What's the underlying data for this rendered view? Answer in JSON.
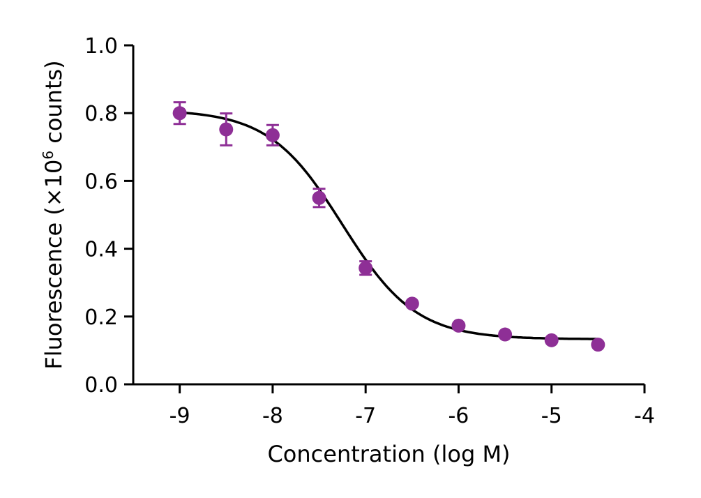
{
  "chart_data": {
    "type": "scatter",
    "xlabel": "Concentration (log M)",
    "ylabel": "Fluorescence (×10",
    "ylabel_sup": "6",
    "ylabel_tail": " counts)",
    "xlim": [
      -9.5,
      -4
    ],
    "ylim": [
      0,
      1.0
    ],
    "x_ticks": [
      -9,
      -8,
      -7,
      -6,
      -5,
      -4
    ],
    "x_tick_labels": [
      "-9",
      "-8",
      "-7",
      "-6",
      "-5",
      "-4"
    ],
    "y_ticks": [
      0,
      0.2,
      0.4,
      0.6,
      0.8,
      1.0
    ],
    "y_tick_labels": [
      "0.0",
      "0.2",
      "0.4",
      "0.6",
      "0.8",
      "1.0"
    ],
    "grid": false,
    "colors": {
      "points": "#8E2F96",
      "curve": "#000000"
    },
    "series": [
      {
        "x": [
          -9,
          -8.5,
          -8,
          -7.5,
          -7,
          -6.5,
          -6,
          -5.5,
          -5,
          -4.5
        ],
        "y": [
          0.8,
          0.752,
          0.735,
          0.55,
          0.343,
          0.238,
          0.173,
          0.147,
          0.13,
          0.117
        ],
        "err": [
          0.032,
          0.047,
          0.03,
          0.027,
          0.02,
          0,
          0,
          0,
          0,
          0
        ]
      }
    ],
    "fit": {
      "model": "four-parameter logistic",
      "top": 0.81,
      "bottom": 0.133,
      "logIC50": -7.25,
      "hill": 1.1
    }
  }
}
